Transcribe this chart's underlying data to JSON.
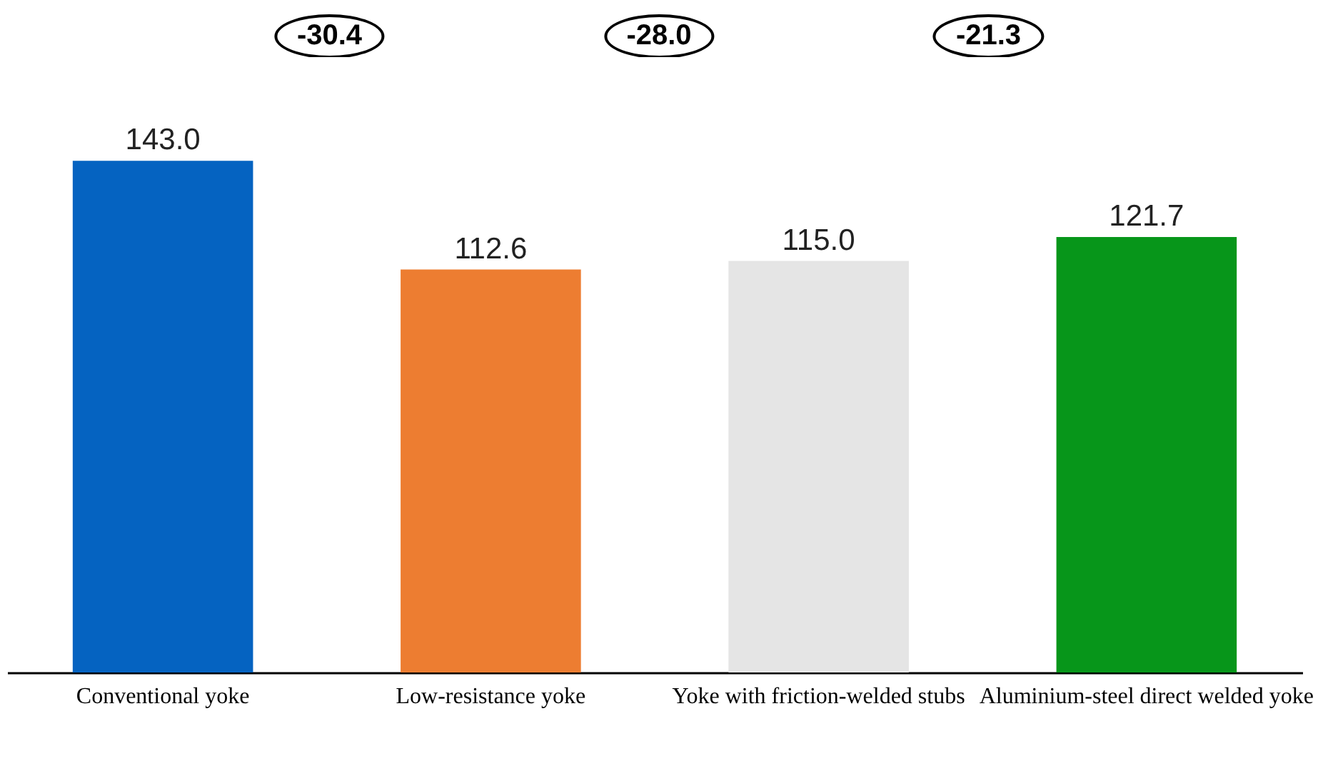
{
  "chart_data": {
    "type": "bar",
    "categories": [
      "Conventional yoke",
      "Low-resistance yoke",
      "Yoke with friction-welded stubs",
      "Aluminium-steel direct welded yoke"
    ],
    "values": [
      143.0,
      112.6,
      115.0,
      121.7
    ],
    "colors": [
      "#0563c1",
      "#ed7d31",
      "#e5e5e5",
      "#07961a"
    ],
    "value_labels": [
      "143.0",
      "112.6",
      "115.0",
      "121.7"
    ],
    "annotations": [
      "-30.4",
      "-28.0",
      "-21.3"
    ]
  }
}
